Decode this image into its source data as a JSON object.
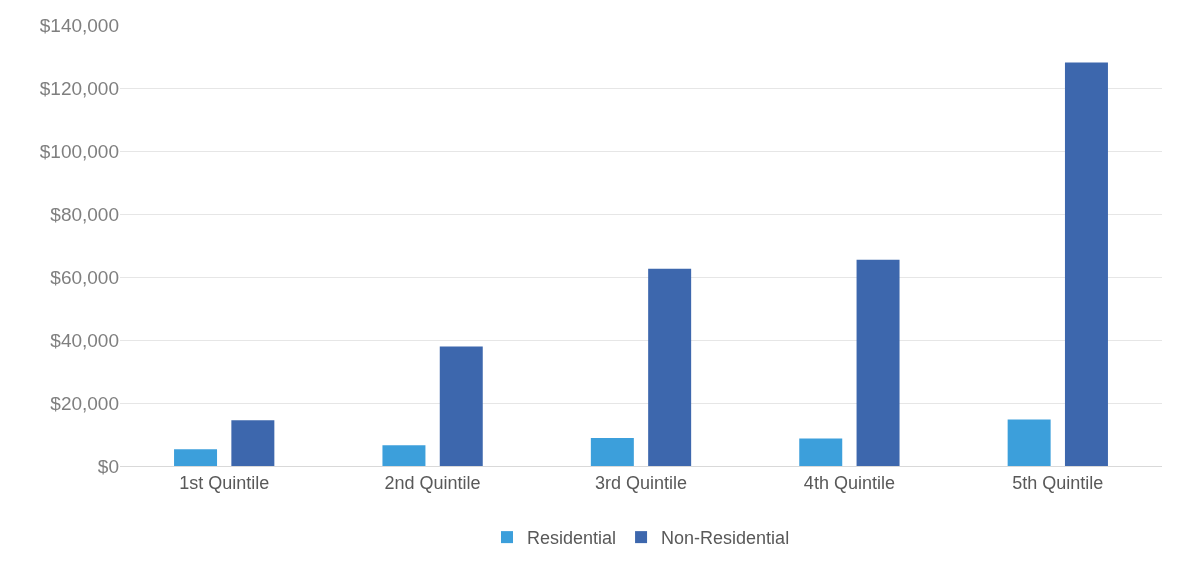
{
  "chart_data": {
    "type": "bar",
    "categories": [
      "1st Quintile",
      "2nd Quintile",
      "3rd Quintile",
      "4th Quintile",
      "5th Quintile"
    ],
    "series": [
      {
        "name": "Residential",
        "color": "#3c9fdb",
        "values": [
          5300,
          6600,
          8900,
          8700,
          14800
        ]
      },
      {
        "name": "Non-Residential",
        "color": "#3d67ad",
        "values": [
          14500,
          37900,
          62600,
          65500,
          128100
        ]
      }
    ],
    "ylim": [
      0,
      140000
    ],
    "yticks": [
      {
        "value": 0,
        "label": "$0"
      },
      {
        "value": 20000,
        "label": "$20,000"
      },
      {
        "value": 40000,
        "label": "$40,000"
      },
      {
        "value": 60000,
        "label": "$60,000"
      },
      {
        "value": 80000,
        "label": "$80,000"
      },
      {
        "value": 100000,
        "label": "$100,000"
      },
      {
        "value": 120000,
        "label": "$120,000"
      },
      {
        "value": 140000,
        "label": "$140,000"
      }
    ],
    "grid": "y",
    "legend": "bottom"
  }
}
